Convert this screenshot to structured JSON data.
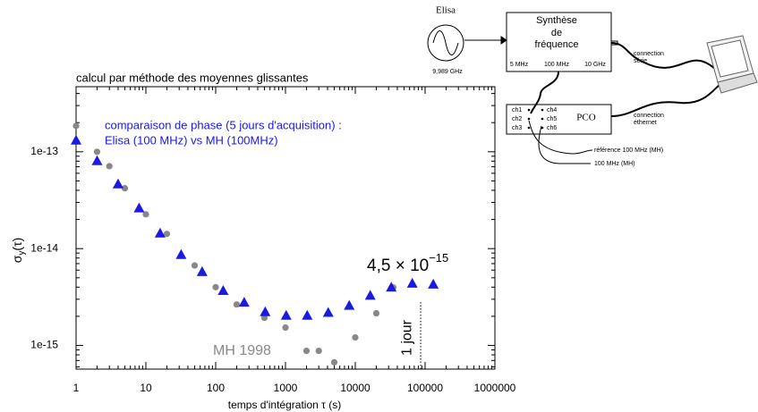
{
  "chart_data": {
    "type": "scatter",
    "title": "calcul par méthode des moyennes glissantes",
    "x_label": "temps d'intégration τ (s)",
    "y_label": {
      "symbol": "σ",
      "sub": "y",
      "rest": "(τ)"
    },
    "log_x": true,
    "log_y": true,
    "xlim": [
      1,
      1000000
    ],
    "ylim": [
      5.7e-16,
      4.7e-13
    ],
    "xticks": [
      1,
      10,
      100,
      1000,
      10000,
      100000,
      1000000
    ],
    "yticks": [
      {
        "value": 1e-15,
        "label": "1e-15"
      },
      {
        "value": 1e-14,
        "label": "1e-14"
      },
      {
        "value": 1e-13,
        "label": "1e-13"
      }
    ],
    "series": [
      {
        "name": "MH 1998",
        "color": "#888888",
        "marker": "circle",
        "x": [
          1,
          2,
          3,
          5,
          10,
          20,
          50,
          100,
          200,
          500,
          1000,
          2000,
          3000,
          5000,
          10000,
          20000,
          35000
        ],
        "values": [
          1.85e-13,
          1e-13,
          7.1e-14,
          4.2e-14,
          2.26e-14,
          1.42e-14,
          6.7e-15,
          4e-15,
          2.65e-15,
          1.93e-15,
          1.53e-15,
          8.8e-16,
          8.8e-16,
          6.7e-16,
          1.21e-15,
          2.15e-15,
          3.98e-15
        ]
      },
      {
        "name": "Elisa (100 MHz) vs MH (100MHz)",
        "color": "#1a1ae0",
        "marker": "triangle",
        "x": [
          1,
          2,
          4,
          8,
          16,
          32,
          64,
          128,
          256,
          512,
          1024,
          2048,
          4096,
          8192,
          16384,
          32768,
          65536,
          131072
        ],
        "values": [
          1.32e-13,
          8.1e-14,
          4.66e-14,
          2.63e-14,
          1.45e-14,
          8.7e-15,
          5.8e-15,
          3.7e-15,
          2.8e-15,
          2.23e-15,
          2.05e-15,
          2.05e-15,
          2.2e-15,
          2.6e-15,
          3.3e-15,
          4e-15,
          4.4e-15,
          4.3e-15
        ]
      }
    ],
    "legend_heading": "comparaison de phase (5 jours d'acquisition) :",
    "annotations": {
      "level_mantissa": "4,5 × 10",
      "level_exponent": "−15",
      "day_label": "1 jour",
      "day_x": 86400
    }
  },
  "diagram": {
    "source": "Elisa",
    "source_freq": "9,989 GHz",
    "synth": [
      "Synthèse",
      "de",
      "fréquence"
    ],
    "synth_outputs": [
      "5 MHz",
      "100 MHz",
      "10 GHz"
    ],
    "pco": "PCO",
    "channels": [
      "ch1",
      "ch2",
      "ch3",
      "ch4",
      "ch5",
      "ch6"
    ],
    "serial": [
      "connection",
      "série"
    ],
    "ethernet": [
      "connection",
      "éthernet"
    ],
    "ref_in": "référence 100 MHz (MH)",
    "mh_in": "100 MHz (MH)"
  }
}
